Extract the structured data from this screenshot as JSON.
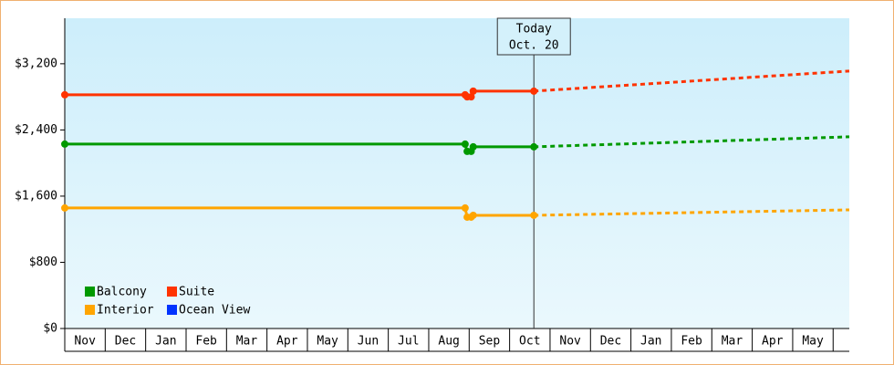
{
  "chart_data": {
    "type": "line",
    "categories": [
      "Nov",
      "Dec",
      "Jan",
      "Feb",
      "Mar",
      "Apr",
      "May",
      "Jun",
      "Jul",
      "Aug",
      "Sep",
      "Oct",
      "Nov",
      "Dec",
      "Jan",
      "Feb",
      "Mar",
      "Apr",
      "May"
    ],
    "xlim": [
      0,
      19.4
    ],
    "x": [
      0,
      9.9,
      9.95,
      10.05,
      10.1,
      11.6
    ],
    "forecast_x": [
      11.6,
      19.4
    ],
    "ylim": [
      0,
      3750
    ],
    "yticks": [
      {
        "value": 0,
        "label": "$0"
      },
      {
        "value": 800,
        "label": "$800"
      },
      {
        "value": 1600,
        "label": "$1,600"
      },
      {
        "value": 2400,
        "label": "$2,400"
      },
      {
        "value": 3200,
        "label": "$3,200"
      }
    ],
    "annotation": {
      "label": [
        "Today",
        "Oct. 20"
      ],
      "x": 11.6
    },
    "series": [
      {
        "name": "Balcony",
        "color": "#009900",
        "values": [
          2229,
          2229,
          2141,
          2141,
          2196,
          2196
        ],
        "forecast": [
          2196,
          2317
        ]
      },
      {
        "name": "Suite",
        "color": "#ff3300",
        "values": [
          2825,
          2825,
          2800,
          2800,
          2869,
          2869
        ],
        "forecast": [
          2869,
          3112
        ]
      },
      {
        "name": "Interior",
        "color": "#ffa500",
        "values": [
          1457,
          1457,
          1346,
          1346,
          1368,
          1368
        ],
        "forecast": [
          1368,
          1434
        ]
      },
      {
        "name": "Ocean View",
        "color": "#0033ff",
        "values": [
          null,
          null,
          null,
          null,
          null,
          null
        ],
        "forecast": [
          null,
          null
        ]
      }
    ]
  }
}
